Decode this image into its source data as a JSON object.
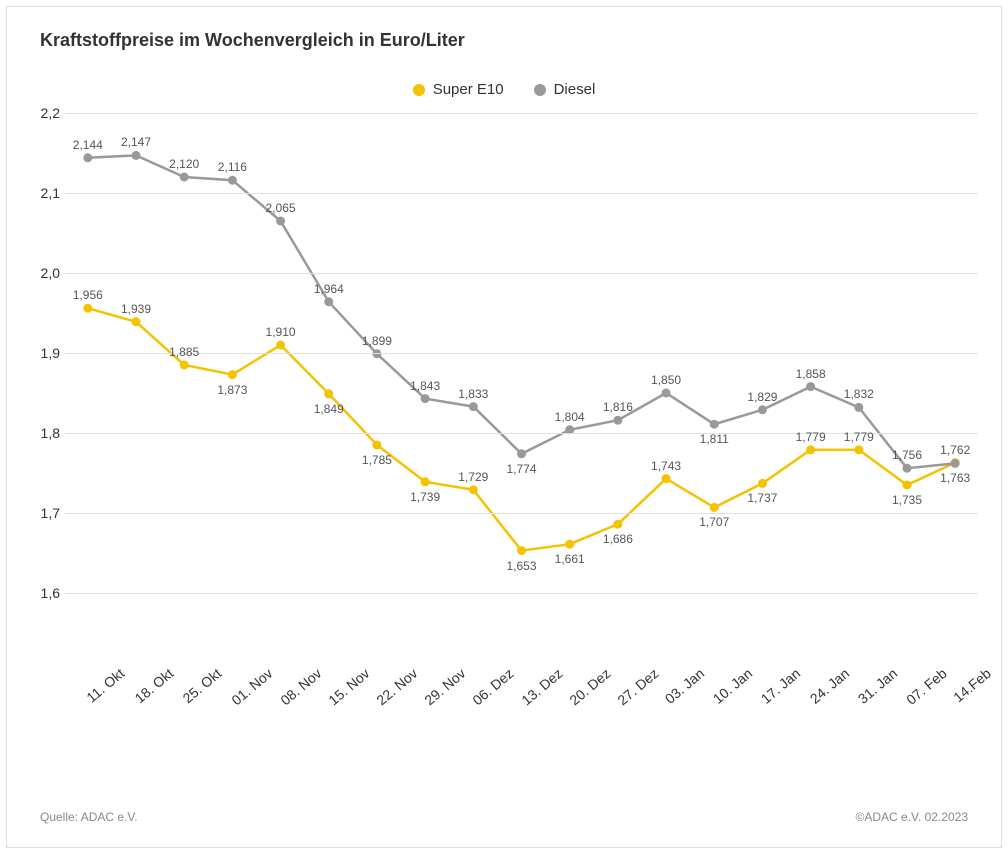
{
  "title": "Kraftstoffpreise im Wochenvergleich in Euro/Liter",
  "footer": {
    "source": "Quelle: ADAC e.V.",
    "copyright": "©ADAC e.V. 02.2023"
  },
  "chart": {
    "type": "line",
    "ylim": [
      1.55,
      2.2
    ],
    "yticks": [
      1.6,
      1.7,
      1.8,
      1.9,
      2.0,
      2.1,
      2.2
    ],
    "ytick_labels": [
      "1,6",
      "1,7",
      "1,8",
      "1,9",
      "2,0",
      "2,1",
      "2,2"
    ],
    "grid_color": "#e0e0e0",
    "background_color": "#ffffff",
    "categories": [
      "11. Okt",
      "18. Okt",
      "25. Okt",
      "01. Nov",
      "08. Nov",
      "15. Nov",
      "22. Nov",
      "29. Nov",
      "06. Dez",
      "13. Dez",
      "20. Dez",
      "27. Dez",
      "03. Jan",
      "10. Jan",
      "17. Jan",
      "24. Jan",
      "31. Jan",
      "07. Feb",
      "14.Feb"
    ],
    "x_label_fontsize": 14,
    "y_label_fontsize": 14,
    "data_label_fontsize": 12,
    "marker_radius": 4.5,
    "line_width": 2.5,
    "series": [
      {
        "name": "Super E10",
        "color": "#f3c300",
        "values": [
          1.956,
          1.939,
          1.885,
          1.873,
          1.91,
          1.849,
          1.785,
          1.739,
          1.729,
          1.653,
          1.661,
          1.686,
          1.743,
          1.707,
          1.737,
          1.779,
          1.779,
          1.735,
          1.763
        ],
        "labels": [
          "1,956",
          "1,939",
          "1,885",
          "1,873",
          "1,910",
          "1,849",
          "1,785",
          "1,739",
          "1,729",
          "1,653",
          "1,661",
          "1,686",
          "1,743",
          "1,707",
          "1,737",
          "1,779",
          "1,779",
          "1,735",
          "1,763"
        ],
        "label_pos": [
          "above",
          "above",
          "above",
          "below",
          "above",
          "below",
          "below",
          "below",
          "above",
          "below",
          "below",
          "below",
          "above",
          "below",
          "below",
          "above",
          "above",
          "below",
          "below"
        ]
      },
      {
        "name": "Diesel",
        "color": "#999999",
        "values": [
          2.144,
          2.147,
          2.12,
          2.116,
          2.065,
          1.964,
          1.899,
          1.843,
          1.833,
          1.774,
          1.804,
          1.816,
          1.85,
          1.811,
          1.829,
          1.858,
          1.832,
          1.756,
          1.762
        ],
        "labels": [
          "2,144",
          "2,147",
          "2,120",
          "2,116",
          "2,065",
          "1,964",
          "1,899",
          "1,843",
          "1,833",
          "1,774",
          "1,804",
          "1,816",
          "1,850",
          "1,811",
          "1,829",
          "1,858",
          "1,832",
          "1,756",
          "1,762"
        ],
        "label_pos": [
          "above",
          "above",
          "above",
          "above",
          "above",
          "above",
          "above",
          "above",
          "above",
          "below",
          "above",
          "above",
          "above",
          "below",
          "above",
          "above",
          "above",
          "above",
          "above"
        ]
      }
    ]
  }
}
